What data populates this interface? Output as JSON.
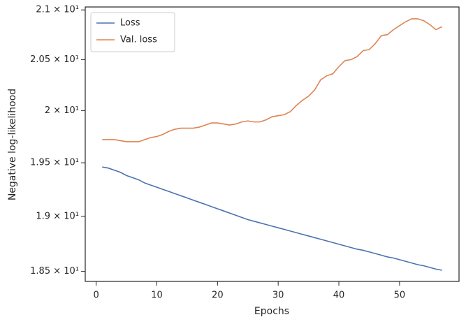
{
  "chart_data": {
    "type": "line",
    "xlabel": "Epochs",
    "ylabel": "Negative log-likelihood",
    "x": [
      1,
      2,
      3,
      4,
      5,
      6,
      7,
      8,
      9,
      10,
      11,
      12,
      13,
      14,
      15,
      16,
      17,
      18,
      19,
      20,
      21,
      22,
      23,
      24,
      25,
      26,
      27,
      28,
      29,
      30,
      31,
      32,
      33,
      34,
      35,
      36,
      37,
      38,
      39,
      40,
      41,
      42,
      43,
      44,
      45,
      46,
      47,
      48,
      49,
      50,
      51,
      52,
      53,
      54,
      55,
      56,
      57
    ],
    "series": [
      {
        "name": "Loss",
        "color": "#4c72b0",
        "values": [
          19.46,
          19.45,
          19.43,
          19.41,
          19.38,
          19.36,
          19.34,
          19.31,
          19.29,
          19.27,
          19.25,
          19.23,
          19.21,
          19.19,
          19.17,
          19.15,
          19.13,
          19.11,
          19.09,
          19.07,
          19.05,
          19.03,
          19.01,
          18.99,
          18.97,
          18.955,
          18.94,
          18.925,
          18.91,
          18.895,
          18.88,
          18.865,
          18.85,
          18.835,
          18.82,
          18.805,
          18.79,
          18.775,
          18.76,
          18.745,
          18.73,
          18.715,
          18.7,
          18.69,
          18.675,
          18.66,
          18.645,
          18.63,
          18.62,
          18.605,
          18.59,
          18.575,
          18.56,
          18.55,
          18.535,
          18.52,
          18.51
        ]
      },
      {
        "name": "Val. loss",
        "color": "#dd8452",
        "values": [
          19.72,
          19.72,
          19.72,
          19.71,
          19.7,
          19.7,
          19.7,
          19.72,
          19.74,
          19.75,
          19.77,
          19.8,
          19.82,
          19.83,
          19.83,
          19.83,
          19.84,
          19.86,
          19.88,
          19.88,
          19.87,
          19.86,
          19.87,
          19.89,
          19.9,
          19.89,
          19.89,
          19.91,
          19.94,
          19.95,
          19.96,
          19.99,
          20.05,
          20.1,
          20.14,
          20.2,
          20.3,
          20.34,
          20.36,
          20.43,
          20.49,
          20.5,
          20.53,
          20.59,
          20.6,
          20.66,
          20.74,
          20.75,
          20.8,
          20.84,
          20.88,
          20.91,
          20.91,
          20.89,
          20.85,
          20.8,
          20.83
        ]
      }
    ],
    "xlim": [
      -1.8,
      59.8
    ],
    "xticks": [
      0,
      10,
      20,
      30,
      40,
      50
    ],
    "ylim": [
      18.41,
      21.03
    ],
    "log_y": true,
    "yticks": [
      {
        "value": 18.5,
        "label": "1.85 × 10¹"
      },
      {
        "value": 19,
        "label": "1.9 × 10¹"
      },
      {
        "value": 19.5,
        "label": "1.95 × 10¹"
      },
      {
        "value": 20,
        "label": "2 × 10¹"
      },
      {
        "value": 20.5,
        "label": "2.05 × 10¹"
      },
      {
        "value": 21,
        "label": "2.1 × 10¹"
      }
    ],
    "legend": "upper left"
  }
}
